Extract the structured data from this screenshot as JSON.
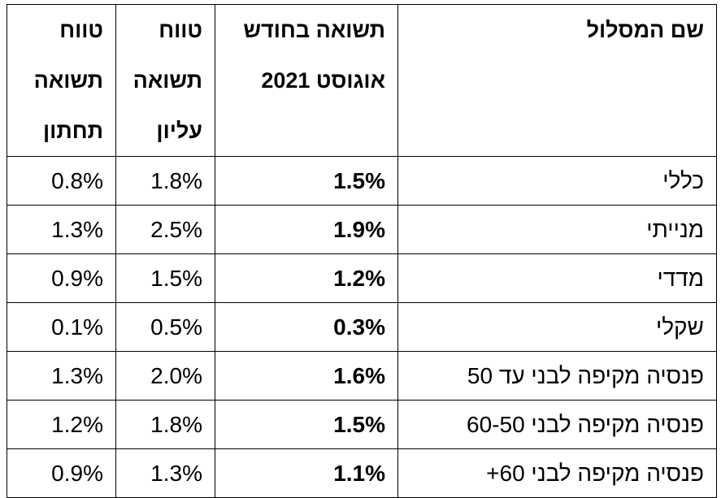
{
  "table": {
    "header": [
      [
        "שם המסלול"
      ],
      [
        "תשואה בחודש",
        "אוגוסט  2021"
      ],
      [
        "טווח",
        "תשואה",
        "עליון"
      ],
      [
        "טווח",
        "תשואה",
        "תחתון"
      ]
    ],
    "rows": [
      [
        "כללי",
        "1.5%",
        "1.8%",
        "0.8%"
      ],
      [
        "מנייתי",
        "1.9%",
        "2.5%",
        "1.3%"
      ],
      [
        "מדדי",
        "1.2%",
        "1.5%",
        "0.9%"
      ],
      [
        "שקלי",
        "0.3%",
        "0.5%",
        "0.1%"
      ],
      [
        "פנסיה מקיפה לבני עד 50",
        "1.6%",
        "2.0%",
        "1.3%"
      ],
      [
        "פנסיה מקיפה לבני 60-50",
        "1.5%",
        "1.8%",
        "1.2%"
      ],
      [
        "פנסיה מקיפה לבני 60+",
        "1.1%",
        "1.3%",
        "0.9%"
      ]
    ]
  }
}
